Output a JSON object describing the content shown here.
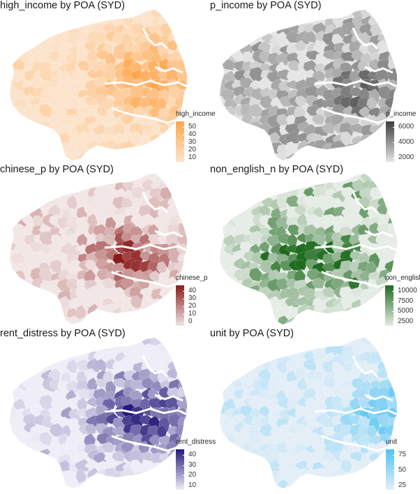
{
  "panels": [
    {
      "title": "high_income by POA (SYD)",
      "legend": {
        "title": "high_income",
        "ticks": [
          "50",
          "40",
          "30",
          "20",
          "10"
        ],
        "colors": [
          "#ffa64d",
          "#fce4cc"
        ]
      },
      "accent": "#ff9a3c"
    },
    {
      "title": "p_income by POA (SYD)",
      "legend": {
        "title": "p_income",
        "ticks": [
          "6000",
          "4000",
          "2000"
        ],
        "colors": [
          "#3c3c3c",
          "#e6e6e6"
        ]
      },
      "accent": "#4a4a4a"
    },
    {
      "title": "chinese_p by POA (SYD)",
      "legend": {
        "title": "chinese_p",
        "ticks": [
          "40",
          "30",
          "20",
          "10",
          "0"
        ],
        "colors": [
          "#8b1a1a",
          "#f2e6e6"
        ]
      },
      "accent": "#9b2a2a"
    },
    {
      "title": "non_english_n by POA (SYD)",
      "legend": {
        "title": "non_english",
        "ticks": [
          "10000",
          "7500",
          "5000",
          "2500"
        ],
        "colors": [
          "#1f6b1f",
          "#e6ece6"
        ]
      },
      "accent": "#2b7a2b"
    },
    {
      "title": "rent_distress by POA (SYD)",
      "legend": {
        "title": "rent_distress",
        "ticks": [
          "40",
          "30",
          "20",
          "10"
        ],
        "colors": [
          "#241a7a",
          "#efedf7"
        ]
      },
      "accent": "#3a2a99"
    },
    {
      "title": "unit by POA (SYD)",
      "legend": {
        "title": "unit",
        "ticks": [
          "75",
          "50",
          "25"
        ],
        "colors": [
          "#4ec3f5",
          "#e3eef7"
        ]
      },
      "accent": "#40baf0"
    }
  ]
}
